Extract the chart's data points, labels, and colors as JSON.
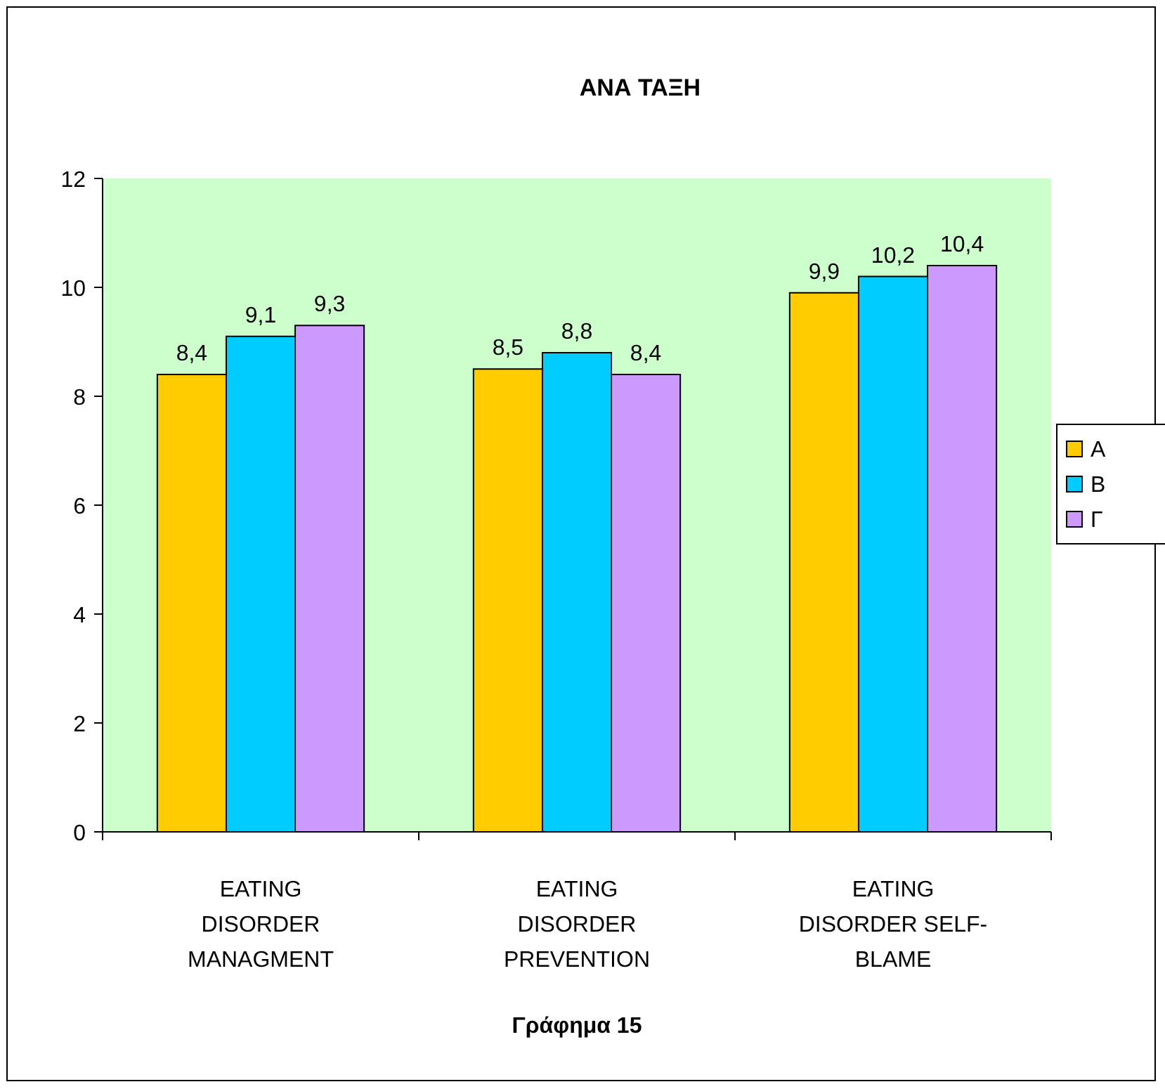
{
  "chart_data": {
    "type": "bar",
    "title": "ΑΝΑ ΤΑΞΗ",
    "categories": [
      "EATING DISORDER MANAGMENT",
      "EATING DISORDER PREVENTION",
      "EATING DISORDER SELF-BLAME"
    ],
    "series": [
      {
        "name": "Α",
        "color": "#ffcc00",
        "values": [
          8.4,
          8.5,
          9.9
        ],
        "value_labels": [
          "8,4",
          "8,5",
          "9,9"
        ]
      },
      {
        "name": "Β",
        "color": "#00ccff",
        "values": [
          9.1,
          8.8,
          10.2
        ],
        "value_labels": [
          "9,1",
          "8,8",
          "10,2"
        ]
      },
      {
        "name": "Γ",
        "color": "#cc99ff",
        "values": [
          9.3,
          8.4,
          10.4
        ],
        "value_labels": [
          "9,3",
          "8,4",
          "10,4"
        ]
      }
    ],
    "ylim": [
      0,
      12
    ],
    "yticks": [
      0,
      2,
      4,
      6,
      8,
      10,
      12
    ],
    "grid": false,
    "legend": "right",
    "annotations": [
      "Γράφημα 15"
    ]
  }
}
